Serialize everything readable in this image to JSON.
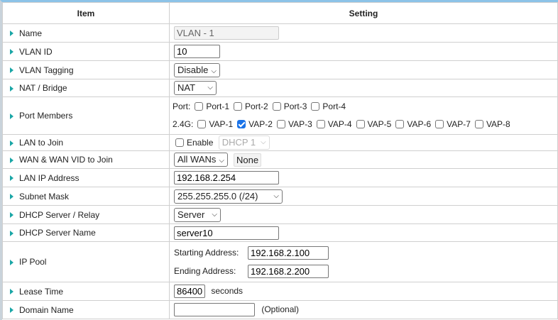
{
  "header": {
    "item": "Item",
    "setting": "Setting"
  },
  "rows": {
    "name": {
      "label": "Name",
      "value": "VLAN - 1"
    },
    "vlan_id": {
      "label": "VLAN ID",
      "value": "10"
    },
    "vlan_tagging": {
      "label": "VLAN Tagging",
      "value": "Disable"
    },
    "nat_bridge": {
      "label": "NAT / Bridge",
      "value": "NAT"
    },
    "port_members": {
      "label": "Port Members",
      "port_prefix": "Port:",
      "ports": [
        {
          "label": "Port-1",
          "checked": false
        },
        {
          "label": "Port-2",
          "checked": false
        },
        {
          "label": "Port-3",
          "checked": false
        },
        {
          "label": "Port-4",
          "checked": false
        }
      ],
      "wifi_prefix": "2.4G:",
      "vaps": [
        {
          "label": "VAP-1",
          "checked": false
        },
        {
          "label": "VAP-2",
          "checked": true
        },
        {
          "label": "VAP-3",
          "checked": false
        },
        {
          "label": "VAP-4",
          "checked": false
        },
        {
          "label": "VAP-5",
          "checked": false
        },
        {
          "label": "VAP-6",
          "checked": false
        },
        {
          "label": "VAP-7",
          "checked": false
        },
        {
          "label": "VAP-8",
          "checked": false
        }
      ]
    },
    "lan_to_join": {
      "label": "LAN to Join",
      "enable_label": "Enable",
      "enabled": false,
      "select": "DHCP 1"
    },
    "wan_to_join": {
      "label": "WAN & WAN VID to Join",
      "select": "All WANs",
      "button": "None"
    },
    "lan_ip": {
      "label": "LAN IP Address",
      "value": "192.168.2.254"
    },
    "subnet": {
      "label": "Subnet Mask",
      "value": "255.255.255.0 (/24)"
    },
    "dhcp": {
      "label": "DHCP Server / Relay",
      "value": "Server"
    },
    "dhcp_name": {
      "label": "DHCP Server Name",
      "value": "server10"
    },
    "ip_pool": {
      "label": "IP Pool",
      "start_label": "Starting Address:",
      "start": "192.168.2.100",
      "end_label": "Ending Address:",
      "end": "192.168.2.200"
    },
    "lease": {
      "label": "Lease Time",
      "value": "86400",
      "unit": "seconds"
    },
    "domain": {
      "label": "Domain Name",
      "value": "",
      "hint": "(Optional)"
    }
  },
  "colors": {
    "accent_top": "#8cc3e8",
    "arrow": "#1aa6a6",
    "checkbox": "#1a73e8"
  }
}
